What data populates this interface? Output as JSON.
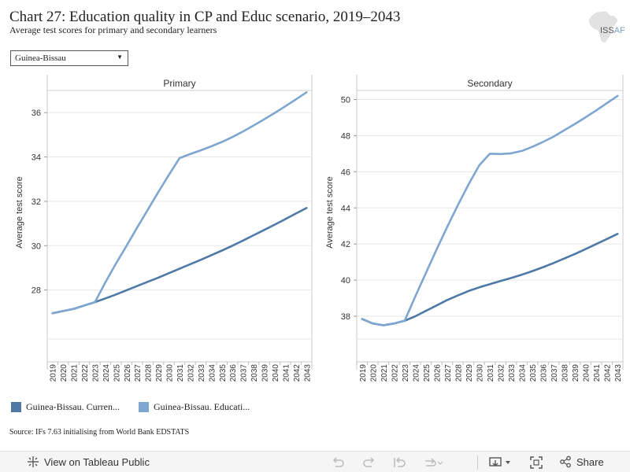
{
  "header": {
    "title": "Chart 27: Education quality in CP and Educ scenario, 2019–2043",
    "subtitle": "Average test scores for primary and secondary learners",
    "logo_text_a": "ISS",
    "logo_text_b": "AF"
  },
  "filter": {
    "selected": "Guinea-Bissau"
  },
  "colors": {
    "current_path": "#4e79a7",
    "education": "#7ea6d0"
  },
  "legend": [
    {
      "label": "Guinea-Bissau. Curren...",
      "color": "#4e79a7"
    },
    {
      "label": "Guinea-Bissau. Educati...",
      "color": "#7ea6d0"
    }
  ],
  "source": "Source: IFs 7.63 initialising from World Bank EDSTATS",
  "toolbar": {
    "view_label": "View on Tableau Public",
    "share_label": "Share"
  },
  "chart_data": [
    {
      "type": "line",
      "title": "Primary",
      "ylabel": "Average test score",
      "xlabel": "",
      "ylim": [
        26.0,
        37.0
      ],
      "yticks": [
        28,
        30,
        32,
        34,
        36
      ],
      "x": [
        "2019",
        "2020",
        "2021",
        "2022",
        "2023",
        "2024",
        "2025",
        "2026",
        "2027",
        "2028",
        "2029",
        "2030",
        "2031",
        "2032",
        "2033",
        "2034",
        "2035",
        "2036",
        "2037",
        "2038",
        "2039",
        "2040",
        "2041",
        "2042",
        "2043"
      ],
      "grid": "horizontal",
      "series": [
        {
          "name": "Guinea-Bissau. Curren...",
          "color": "#4e79a7",
          "values": [
            26.95,
            27.05,
            27.15,
            27.3,
            27.45,
            27.62,
            27.8,
            27.99,
            28.18,
            28.37,
            28.56,
            28.76,
            28.96,
            29.16,
            29.36,
            29.57,
            29.78,
            30.0,
            30.23,
            30.47,
            30.71,
            30.95,
            31.2,
            31.45,
            31.7
          ]
        },
        {
          "name": "Guinea-Bissau. Educati...",
          "color": "#7ea6d0",
          "values": [
            26.95,
            27.05,
            27.15,
            27.3,
            27.45,
            28.35,
            29.2,
            30.0,
            30.82,
            31.62,
            32.42,
            33.2,
            33.95,
            34.13,
            34.3,
            34.48,
            34.68,
            34.9,
            35.15,
            35.42,
            35.7,
            35.99,
            36.29,
            36.6,
            36.92
          ]
        }
      ]
    },
    {
      "type": "line",
      "title": "Secondary",
      "ylabel": "Average test score",
      "xlabel": "",
      "ylim": [
        37.0,
        50.5
      ],
      "yticks": [
        38,
        40,
        42,
        44,
        46,
        48,
        50
      ],
      "x": [
        "2019",
        "2020",
        "2021",
        "2022",
        "2023",
        "2024",
        "2025",
        "2026",
        "2027",
        "2028",
        "2029",
        "2030",
        "2031",
        "2032",
        "2033",
        "2034",
        "2035",
        "2036",
        "2037",
        "2038",
        "2039",
        "2040",
        "2041",
        "2042",
        "2043"
      ],
      "grid": "horizontal",
      "series": [
        {
          "name": "Guinea-Bissau. Curren...",
          "color": "#4e79a7",
          "values": [
            37.85,
            37.6,
            37.5,
            37.6,
            37.75,
            38.0,
            38.3,
            38.6,
            38.9,
            39.15,
            39.4,
            39.6,
            39.78,
            39.95,
            40.12,
            40.3,
            40.5,
            40.72,
            40.95,
            41.2,
            41.45,
            41.72,
            42.0,
            42.28,
            42.56
          ]
        },
        {
          "name": "Guinea-Bissau. Educati...",
          "color": "#7ea6d0",
          "values": [
            37.85,
            37.6,
            37.5,
            37.6,
            37.75,
            39.1,
            40.4,
            41.7,
            42.95,
            44.15,
            45.3,
            46.35,
            47.0,
            46.98,
            47.02,
            47.15,
            47.38,
            47.65,
            47.95,
            48.3,
            48.65,
            49.02,
            49.4,
            49.8,
            50.2
          ]
        }
      ]
    }
  ]
}
